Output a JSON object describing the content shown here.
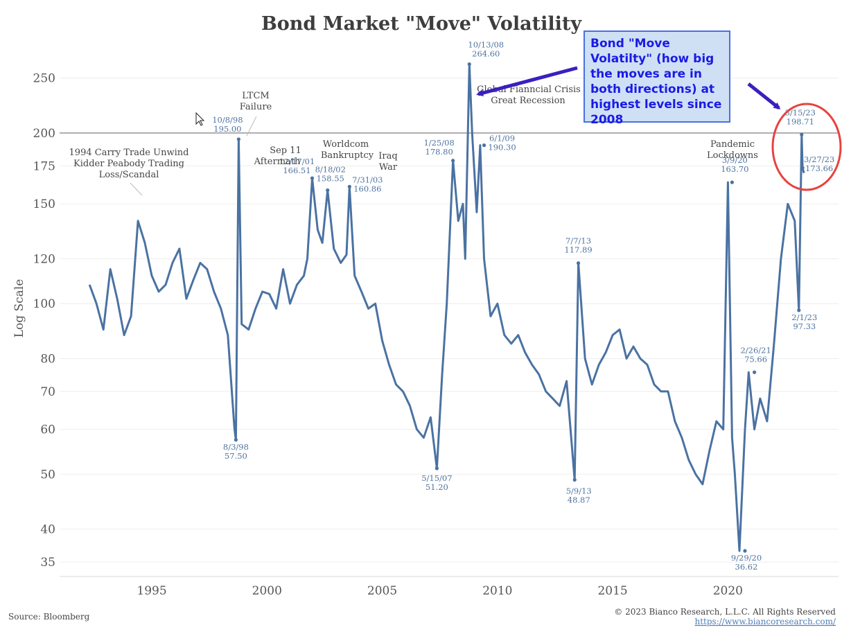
{
  "chart_data": {
    "type": "line",
    "title": "Bond Market \"Move\" Volatility",
    "ylabel": "Log Scale",
    "y_scale": "log",
    "ylim": [
      33,
      290
    ],
    "xlim": [
      1991.0,
      2024.8
    ],
    "y_ticks": [
      35,
      40,
      50,
      60,
      70,
      80,
      100,
      120,
      150,
      175,
      200,
      250
    ],
    "x_ticks": [
      1995,
      2000,
      2005,
      2010,
      2015,
      2020
    ],
    "reference_line": 200,
    "series_color": "#4a72a2",
    "series": [
      {
        "name": "",
        "x": [
          1992.3,
          1992.6,
          1992.9,
          1993.2,
          1993.5,
          1993.8,
          1994.1,
          1994.4,
          1994.7,
          1995.0,
          1995.3,
          1995.6,
          1995.9,
          1996.2,
          1996.5,
          1996.8,
          1997.1,
          1997.4,
          1997.7,
          1998.0,
          1998.3,
          1998.59,
          1998.65,
          1998.77,
          1998.9,
          1999.2,
          1999.5,
          1999.8,
          2000.1,
          2000.4,
          2000.7,
          2001.0,
          2001.3,
          2001.6,
          2001.75,
          2001.96,
          2002.2,
          2002.4,
          2002.63,
          2002.9,
          2003.2,
          2003.45,
          2003.58,
          2003.8,
          2004.1,
          2004.4,
          2004.7,
          2005.0,
          2005.3,
          2005.6,
          2005.9,
          2006.2,
          2006.5,
          2006.8,
          2007.1,
          2007.37,
          2007.6,
          2007.8,
          2008.07,
          2008.3,
          2008.5,
          2008.6,
          2008.78,
          2008.9,
          2009.1,
          2009.25,
          2009.42,
          2009.7,
          2010.0,
          2010.3,
          2010.6,
          2010.9,
          2011.2,
          2011.5,
          2011.8,
          2012.1,
          2012.4,
          2012.7,
          2013.0,
          2013.35,
          2013.51,
          2013.8,
          2014.1,
          2014.4,
          2014.7,
          2015.0,
          2015.3,
          2015.6,
          2015.9,
          2016.2,
          2016.5,
          2016.8,
          2017.1,
          2017.4,
          2017.7,
          2018.0,
          2018.3,
          2018.6,
          2018.9,
          2019.2,
          2019.5,
          2019.8,
          2020.0,
          2020.18,
          2020.3,
          2020.5,
          2020.74,
          2020.9,
          2021.15,
          2021.4,
          2021.7,
          2022.0,
          2022.3,
          2022.6,
          2022.9,
          2023.08,
          2023.2,
          2023.24,
          2023.3
        ],
        "values": [
          108,
          100,
          90,
          115,
          102,
          88,
          95,
          140,
          128,
          112,
          105,
          108,
          118,
          125,
          102,
          110,
          118,
          115,
          105,
          98,
          88,
          60,
          57.5,
          195,
          92,
          90,
          98,
          105,
          104,
          98,
          115,
          100,
          108,
          112,
          120,
          166.51,
          135,
          128,
          158.55,
          125,
          118,
          122,
          160.86,
          112,
          105,
          98,
          100,
          86,
          78,
          72,
          70,
          66,
          60,
          58,
          63,
          51.2,
          75,
          100,
          178.8,
          140,
          150,
          120,
          264.6,
          200,
          145,
          190.3,
          120,
          95,
          100,
          88,
          85,
          88,
          82,
          78,
          75,
          70,
          68,
          66,
          73,
          48.87,
          117.89,
          80,
          72,
          78,
          82,
          88,
          90,
          80,
          84,
          80,
          78,
          72,
          70,
          70,
          62,
          58,
          53,
          50,
          48,
          55,
          62,
          60,
          163.7,
          58,
          50,
          36.62,
          60,
          75.66,
          60,
          68,
          62,
          85,
          120,
          150,
          140,
          97.33,
          198.71,
          173.66,
          170
        ]
      }
    ],
    "point_labels": [
      {
        "date": "10/8/98",
        "value": "195.00",
        "x": 1998.77,
        "y": 195
      },
      {
        "date": "8/3/98",
        "value": "57.50",
        "x": 1998.65,
        "y": 57.5
      },
      {
        "date": "12/17/01",
        "value": "166.51",
        "x": 2001.96,
        "y": 166.51
      },
      {
        "date": "8/18/02",
        "value": "158.55",
        "x": 2002.63,
        "y": 158.55
      },
      {
        "date": "7/31/03",
        "value": "160.86",
        "x": 2003.58,
        "y": 160.86
      },
      {
        "date": "5/15/07",
        "value": "51.20",
        "x": 2007.37,
        "y": 51.2
      },
      {
        "date": "1/25/08",
        "value": "178.80",
        "x": 2008.07,
        "y": 178.8
      },
      {
        "date": "10/13/08",
        "value": "264.60",
        "x": 2008.78,
        "y": 264.6
      },
      {
        "date": "6/1/09",
        "value": "190.30",
        "x": 2009.42,
        "y": 190.3
      },
      {
        "date": "5/9/13",
        "value": "48.87",
        "x": 2013.35,
        "y": 48.87
      },
      {
        "date": "7/7/13",
        "value": "117.89",
        "x": 2013.51,
        "y": 117.89
      },
      {
        "date": "3/9/20",
        "value": "163.70",
        "x": 2020.18,
        "y": 163.7
      },
      {
        "date": "9/29/20",
        "value": "36.62",
        "x": 2020.74,
        "y": 36.62
      },
      {
        "date": "2/26/21",
        "value": "75.66",
        "x": 2021.15,
        "y": 75.66
      },
      {
        "date": "2/1/23",
        "value": "97.33",
        "x": 2023.08,
        "y": 97.33
      },
      {
        "date": "3/15/23",
        "value": "198.71",
        "x": 2023.2,
        "y": 198.71
      },
      {
        "date": "3/27/23",
        "value": "173.66",
        "x": 2023.24,
        "y": 173.66
      }
    ],
    "events": [
      {
        "lines": [
          "1994 Carry Trade Unwind",
          "Kidder Peabody Trading",
          "Loss/Scandal"
        ]
      },
      {
        "lines": [
          "LTCM",
          "Failure"
        ]
      },
      {
        "lines": [
          "Sep 11",
          "Aftermath"
        ]
      },
      {
        "lines": [
          "Worldcom",
          "Bankruptcy"
        ]
      },
      {
        "lines": [
          "Iraq",
          "War"
        ]
      },
      {
        "lines": [
          "Global Fianncial Crisis",
          "Great Recession"
        ]
      },
      {
        "lines": [
          "Pandemic",
          "Lockdowns"
        ]
      }
    ]
  },
  "annotation_box": {
    "text": "Bond \"Move Volatilty\" (how big the moves are in both directions) at highest levels since 2008",
    "text_color": "#1a1ae6",
    "background": "#cfe0f5",
    "arrow_color": "#3a1fc0"
  },
  "highlight_circle_color": "#e8423f",
  "footer": {
    "source": "Source: Bloomberg",
    "copyright": "© 2023 Bianco Research, L.L.C. All Rights Reserved",
    "url": "https://www.biancoresearch.com/"
  }
}
